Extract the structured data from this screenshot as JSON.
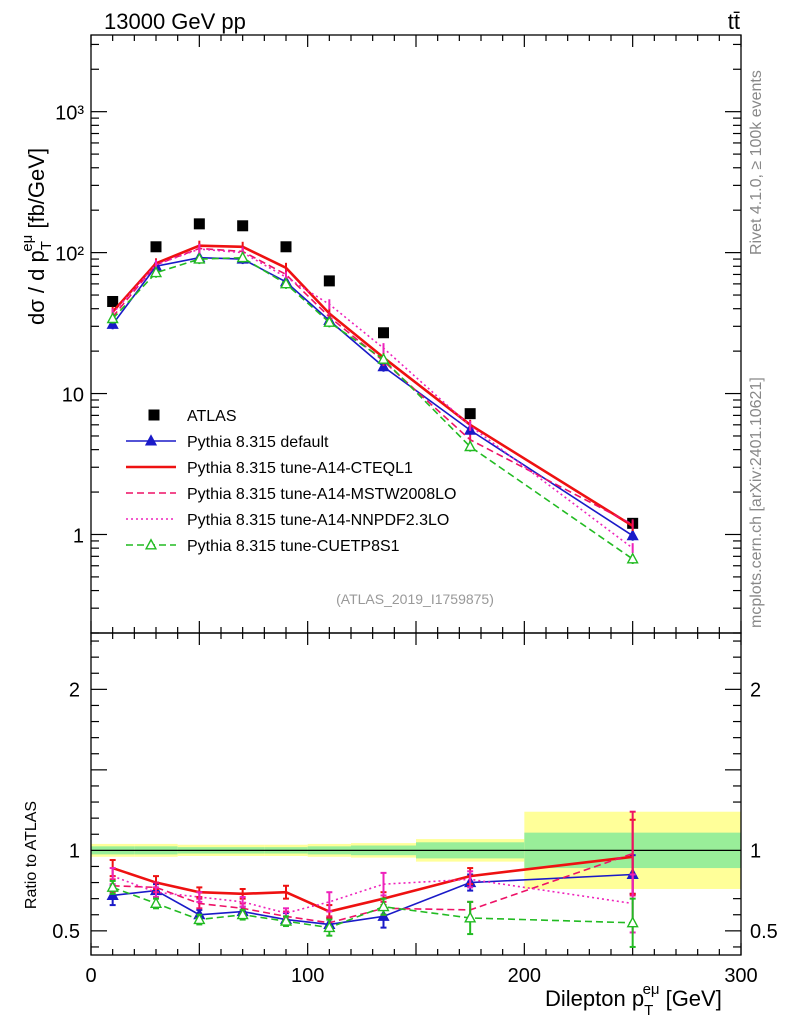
{
  "header": {
    "left_label": "13000 GeV pp",
    "right_label": "tt̄"
  },
  "side_labels": {
    "rivet": "Rivet 4.1.0, ≥ 100k events",
    "mcplots": "mcplots.cern.ch [arXiv:2401.10621]"
  },
  "analysis_tag": "(ATLAS_2019_I1759875)",
  "chart_data": [
    {
      "type": "scatter",
      "panel": "main",
      "yscale": "log",
      "xlabel": "Dilepton p_T^{eμ} [GeV]",
      "ylabel": "dσ / d p_T^{eμ} [fb/GeV]",
      "xlim": [
        0,
        300
      ],
      "ylim": [
        0.2,
        3500
      ],
      "y_tick_labels": [
        "1",
        "10",
        "10²",
        "10³"
      ],
      "x_tick_labels": [
        "0",
        "100",
        "200",
        "300"
      ],
      "bins": [
        [
          0,
          20
        ],
        [
          20,
          40
        ],
        [
          40,
          60
        ],
        [
          60,
          80
        ],
        [
          80,
          100
        ],
        [
          100,
          120
        ],
        [
          120,
          150
        ],
        [
          150,
          200
        ],
        [
          200,
          300
        ]
      ],
      "x": [
        10,
        30,
        50,
        70,
        90,
        110,
        135,
        175,
        250
      ],
      "series": [
        {
          "name": "ATLAS",
          "color": "#000000",
          "style": "marker-square",
          "values": [
            45,
            110,
            160,
            155,
            110,
            63,
            27,
            7.2,
            1.2
          ]
        },
        {
          "name": "Pythia 8.315 default",
          "color": "#1a1ac8",
          "style": "solid-triangle",
          "values": [
            31,
            80,
            92,
            90,
            62,
            33,
            15.5,
            5.5,
            0.98
          ]
        },
        {
          "name": "Pythia 8.315 tune-A14-CTEQL1",
          "color": "#ee1111",
          "style": "solid-thick",
          "values": [
            38,
            84,
            112,
            110,
            78,
            37,
            18,
            6.0,
            1.15
          ]
        },
        {
          "name": "Pythia 8.315 tune-A14-MSTW2008LO",
          "color": "#ee1166",
          "style": "dashed",
          "values": [
            35,
            82,
            107,
            102,
            70,
            35,
            17,
            4.7,
            1.18
          ]
        },
        {
          "name": "Pythia 8.315 tune-A14-NNPDF2.3LO",
          "color": "#ee22bb",
          "style": "dotted",
          "values": [
            37,
            82,
            106,
            100,
            67,
            43,
            21,
            5.9,
            0.8
          ]
        },
        {
          "name": "Pythia 8.315 tune-CUETP8S1",
          "color": "#22bb22",
          "style": "dashed-open-triangle",
          "values": [
            34,
            72,
            90,
            92,
            60,
            32,
            17.5,
            4.2,
            0.67
          ]
        }
      ],
      "legend": [
        "ATLAS",
        "Pythia 8.315 default",
        "Pythia 8.315 tune-A14-CTEQL1",
        "Pythia 8.315 tune-A14-MSTW2008LO",
        "Pythia 8.315 tune-A14-NNPDF2.3LO",
        "Pythia 8.315 tune-CUETP8S1"
      ]
    },
    {
      "type": "line",
      "panel": "ratio",
      "ylabel": "Ratio to ATLAS",
      "xlabel": "Dilepton p_T^{eμ} [GeV]",
      "xlim": [
        0,
        300
      ],
      "ylim": [
        0.35,
        2.35
      ],
      "y_tick_labels": [
        "0.5",
        "1",
        "2"
      ],
      "x_tick_labels": [
        "0",
        "100",
        "200",
        "300"
      ],
      "band_inner": [
        0.025,
        0.025,
        0.02,
        0.02,
        0.02,
        0.025,
        0.03,
        0.05,
        0.11
      ],
      "band_outer": [
        0.04,
        0.04,
        0.035,
        0.035,
        0.035,
        0.04,
        0.045,
        0.07,
        0.24
      ],
      "x": [
        10,
        30,
        50,
        70,
        90,
        110,
        135,
        175,
        250
      ],
      "series": [
        {
          "name": "Pythia 8.315 default",
          "color": "#1a1ac8",
          "values": [
            0.72,
            0.75,
            0.6,
            0.62,
            0.57,
            0.54,
            0.59,
            0.8,
            0.85
          ],
          "errors": [
            0.06,
            0.04,
            0.03,
            0.03,
            0.04,
            0.04,
            0.07,
            0.05,
            0.12
          ]
        },
        {
          "name": "Pythia 8.315 tune-A14-CTEQL1",
          "color": "#ee1111",
          "values": [
            0.89,
            0.8,
            0.74,
            0.73,
            0.74,
            0.62,
            0.7,
            0.84,
            0.96
          ],
          "errors": [
            0.05,
            0.04,
            0.03,
            0.03,
            0.04,
            0.04,
            0.04,
            0.05,
            0.23
          ]
        },
        {
          "name": "Pythia 8.315 tune-A14-MSTW2008LO",
          "color": "#ee1166",
          "values": [
            0.78,
            0.77,
            0.67,
            0.64,
            0.59,
            0.55,
            0.64,
            0.63,
            0.98
          ],
          "errors": [
            0.04,
            0.03,
            0.03,
            0.03,
            0.03,
            0.04,
            0.04,
            0.05,
            0.26
          ]
        },
        {
          "name": "Pythia 8.315 tune-A14-NNPDF2.3LO",
          "color": "#ee22bb",
          "values": [
            0.84,
            0.74,
            0.71,
            0.68,
            0.61,
            0.68,
            0.79,
            0.82,
            0.67
          ],
          "errors": [
            0.05,
            0.03,
            0.03,
            0.03,
            0.03,
            0.06,
            0.07,
            0.05,
            0.18
          ]
        },
        {
          "name": "Pythia 8.315 tune-CUETP8S1",
          "color": "#22bb22",
          "values": [
            0.77,
            0.67,
            0.57,
            0.6,
            0.56,
            0.52,
            0.65,
            0.58,
            0.55
          ],
          "errors": [
            0.04,
            0.03,
            0.03,
            0.03,
            0.03,
            0.05,
            0.05,
            0.1,
            0.15
          ]
        }
      ]
    }
  ]
}
